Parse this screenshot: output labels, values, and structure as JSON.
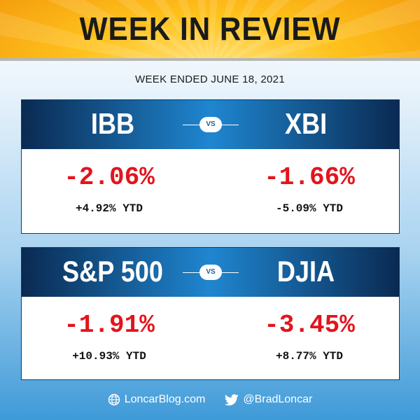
{
  "header": {
    "title": "WEEK IN REVIEW"
  },
  "subtitle": "WEEK ENDED JUNE 18, 2021",
  "vs_label": "VS",
  "comparisons": [
    {
      "left": {
        "ticker": "IBB",
        "weekly_change": "-2.06%",
        "ytd": "+4.92% YTD"
      },
      "right": {
        "ticker": "XBI",
        "weekly_change": "-1.66%",
        "ytd": "-5.09% YTD"
      }
    },
    {
      "left": {
        "ticker": "S&P 500",
        "weekly_change": "-1.91%",
        "ytd": "+10.93% YTD"
      },
      "right": {
        "ticker": "DJIA",
        "weekly_change": "-3.45%",
        "ytd": "+8.77% YTD"
      }
    }
  ],
  "footer": {
    "website": "LoncarBlog.com",
    "website_icon": "globe-icon",
    "twitter": "@BradLoncar",
    "twitter_icon": "twitter-bird-icon"
  },
  "colors": {
    "banner": "#ffc21c",
    "header_dark": "#0a2a52",
    "header_light": "#1f86d0",
    "negative": "#e3141c",
    "text": "#111111"
  }
}
